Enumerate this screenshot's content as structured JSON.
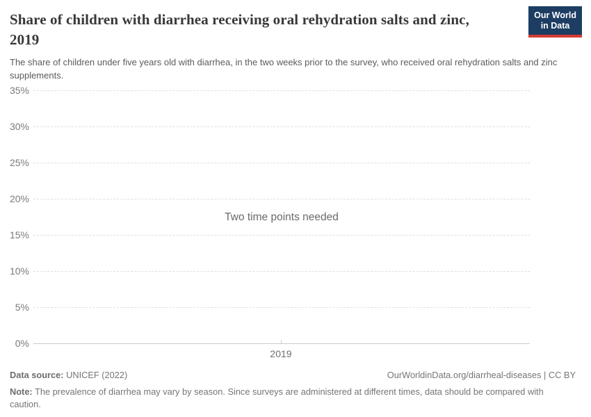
{
  "header": {
    "title": "Share of children with diarrhea receiving oral rehydration salts and zinc, 2019",
    "subtitle": "The share of children under five years old with diarrhea, in the two weeks prior to the survey, who received oral rehydration salts and zinc supplements.",
    "logo": {
      "line1": "Our World",
      "line2": "in Data"
    }
  },
  "chart_data": {
    "type": "line",
    "title": "Share of children with diarrhea receiving oral rehydration salts and zinc, 2019",
    "empty_message": "Two time points needed",
    "series": [],
    "x": {
      "ticks": [
        "2019"
      ]
    },
    "y": {
      "ticks_top_to_bottom": [
        "35%",
        "30%",
        "25%",
        "20%",
        "15%",
        "10%",
        "5%",
        "0%"
      ],
      "min": 0,
      "max": 35,
      "unit": "%",
      "gridlines": "dashed"
    },
    "legend": "none"
  },
  "footer": {
    "datasource_label": "Data source:",
    "datasource_value": "UNICEF (2022)",
    "url_license": "OurWorldinData.org/diarrheal-diseases | CC BY",
    "note_label": "Note:",
    "note_text": "The prevalence of diarrhea may vary by season. Since surveys are administered at different times, data should be compared with caution."
  },
  "colors": {
    "logo_navy": "#1d3d63",
    "logo_red": "#d53b33",
    "title_text": "#383838",
    "subtitle_text": "#5b5b5b",
    "tick_text": "#7a7a7a",
    "gridline": "#dfdfdf",
    "axis_line": "#cbcbcb",
    "footer_text": "#757575"
  }
}
